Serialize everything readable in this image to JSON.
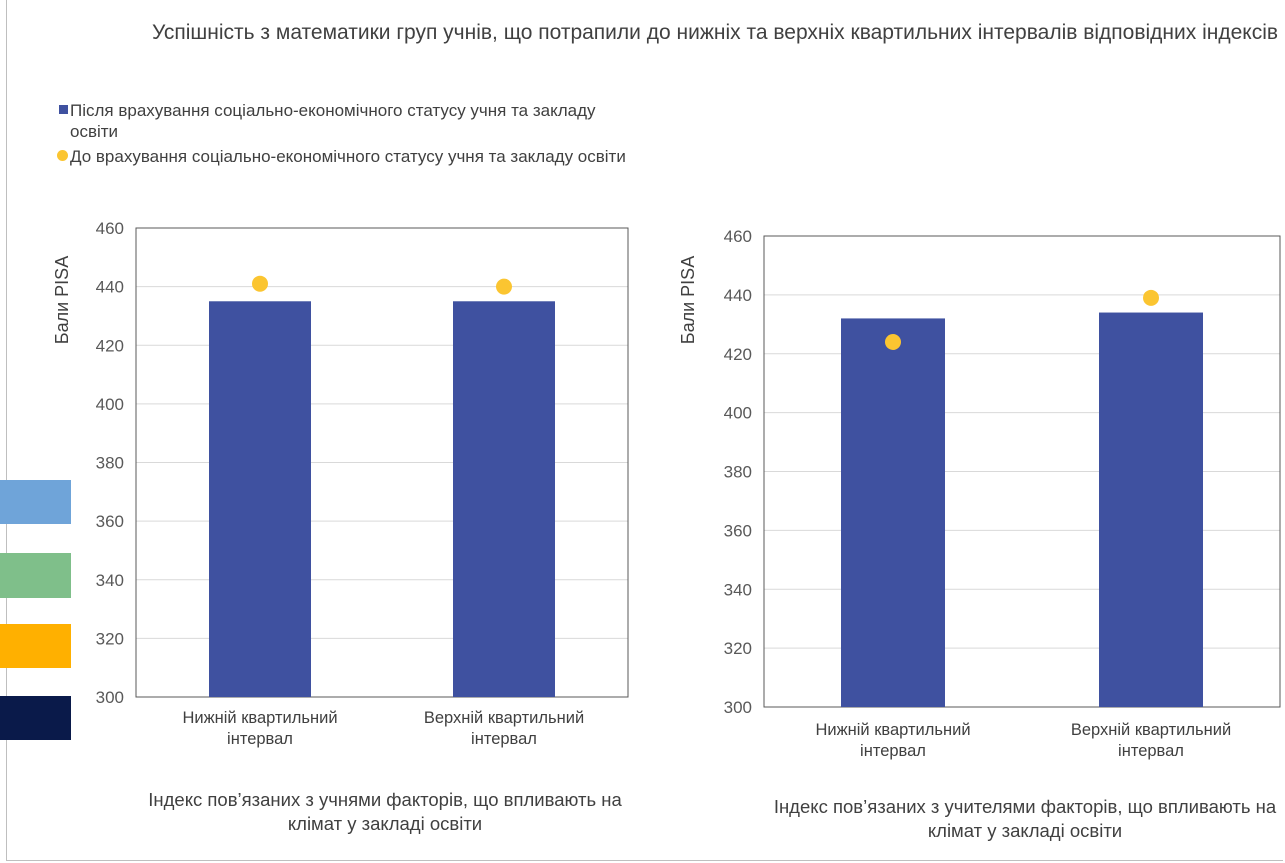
{
  "title": "Успішність з математики груп учнів, що потрапили до нижніх та верхніх квартильних інтервалів відповідних індексів",
  "legend": {
    "bar_label": "Після врахування соціально-економічного статусу учня та закладу освіти",
    "dot_label": "До врахування соціально-економічного статусу учня та закладу освіти"
  },
  "colors": {
    "bar": "#3F51A0",
    "dot": "#FBC531",
    "grid": "#d9d9d9",
    "axis": "#595959",
    "side_blocks": [
      "#6FA4D9",
      "#7FBF8A",
      "#FFB000",
      "#0A1A4A"
    ]
  },
  "chart_data": [
    {
      "type": "bar",
      "ylabel": "Бали PISA",
      "ylim": [
        300,
        460
      ],
      "yticks": [
        300,
        320,
        340,
        360,
        380,
        400,
        420,
        440,
        460
      ],
      "categories": [
        "Нижній квартильний інтервал",
        "Верхній квартильний інтервал"
      ],
      "series": [
        {
          "values": [
            435,
            435
          ]
        },
        {
          "values": [
            441,
            440
          ]
        }
      ],
      "caption": "Індекс пов’язаних з учнями факторів, що впливають на клімат у закладі освіти"
    },
    {
      "type": "bar",
      "ylabel": "Бали PISA",
      "ylim": [
        300,
        460
      ],
      "yticks": [
        300,
        320,
        340,
        360,
        380,
        400,
        420,
        440,
        460
      ],
      "categories": [
        "Нижній квартильний інтервал",
        "Верхній квартильний інтервал"
      ],
      "series": [
        {
          "values": [
            432,
            434
          ]
        },
        {
          "values": [
            424,
            439
          ]
        }
      ],
      "caption": "Індекс пов’язаних з учителями факторів, що впливають на клімат у закладі освіти"
    }
  ]
}
